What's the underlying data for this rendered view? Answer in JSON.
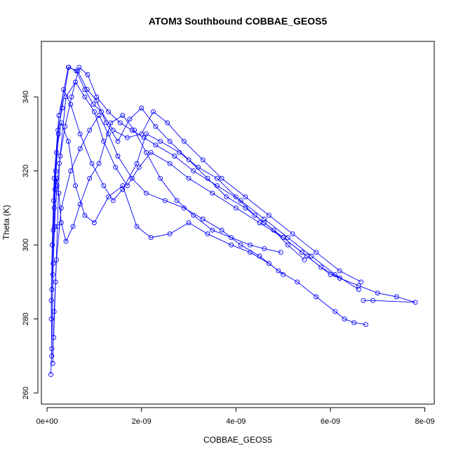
{
  "chart_data": {
    "type": "scatter",
    "title": "ATOM3 Southbound COBBAE_GEOS5",
    "xlabel": "COBBAE_GEOS5",
    "ylabel": "Theta (K)",
    "xlim": [
      -1.2e-10,
      8.2e-09
    ],
    "ylim": [
      257,
      355
    ],
    "x_ticks": [
      0,
      2e-09,
      4e-09,
      6e-09,
      8e-09
    ],
    "x_tick_labels": [
      "0e+00",
      "2e-09",
      "4e-09",
      "6e-09",
      "8e-09"
    ],
    "y_ticks": [
      260,
      280,
      300,
      320,
      340
    ],
    "y_tick_labels": [
      "260",
      "280",
      "300",
      "320",
      "340"
    ],
    "grid": false,
    "legend": "none",
    "marker": "open-circle",
    "connected": true,
    "color": "#0000ff",
    "series": [
      {
        "x": [
          8e-11,
          1e-10,
          9e-11,
          1.1e-10,
          1.5e-10,
          2.5e-10,
          4.5e-10,
          6.5e-10,
          8.5e-10,
          1.05e-09,
          1.25e-09,
          1.5e-09,
          1.75e-09,
          2e-09,
          2.3e-09,
          2.6e-09,
          3e-09,
          3.4e-09,
          3.8e-09,
          4.2e-09,
          4.6e-09,
          5e-09,
          5.4e-09,
          5.8e-09,
          6.2e-09,
          6.6e-09,
          7e-09,
          7.4e-09,
          7.8e-09,
          6.9e-09,
          6.7e-09
        ],
        "y": [
          265,
          272,
          285,
          300,
          318,
          335,
          348,
          347,
          342,
          339,
          333,
          328,
          334,
          337,
          332,
          328,
          323,
          318,
          313,
          310,
          306,
          302,
          298,
          294,
          291,
          289,
          287,
          286,
          284.5,
          285,
          285
        ]
      },
      {
        "x": [
          1.2e-10,
          1.5e-10,
          2e-10,
          3e-10,
          5e-10,
          7e-10,
          9e-10,
          1.1e-09,
          1.3e-09,
          1.5e-09,
          1.8e-09,
          2.1e-09,
          2.5e-09,
          2.9e-09,
          3.3e-09,
          3.7e-09,
          4.1e-09,
          4.5e-09,
          4.9e-09,
          5.3e-09,
          5.7e-09,
          6.1e-09,
          6.3e-09,
          6.5e-09,
          6.75e-09
        ],
        "y": [
          268,
          282,
          296,
          310,
          320,
          326,
          331,
          335,
          330,
          324,
          318,
          314,
          312,
          310,
          307,
          304,
          300,
          297,
          293,
          290,
          286,
          282,
          280,
          279,
          278.5
        ]
      },
      {
        "x": [
          1.4e-10,
          1.8e-10,
          2.2e-10,
          2.6e-10,
          4e-10,
          6e-10,
          8e-10,
          1e-09,
          1.2e-09,
          1.45e-09,
          1.7e-09,
          1.95e-09,
          2.2e-09,
          2.6e-09,
          3e-09,
          3.5e-09,
          4e-09,
          4.5e-09,
          5e-09,
          5.5e-09,
          6e-09,
          6.2e-09
        ],
        "y": [
          275,
          290,
          305,
          322,
          340,
          344,
          340,
          336,
          328,
          321,
          316,
          321,
          325,
          322,
          318,
          314,
          310,
          306,
          302,
          297,
          292,
          291
        ]
      },
      {
        "x": [
          1e-10,
          1.3e-10,
          1.7e-10,
          2.4e-10,
          3.5e-10,
          5e-10,
          7e-10,
          9.5e-10,
          1.2e-09,
          1.4e-09,
          1.6e-09,
          1.9e-09,
          2.1e-09,
          2.4e-09,
          2.8e-09,
          3.2e-09,
          3.6e-09,
          4e-09,
          4.4e-09,
          4.8e-09,
          5.1e-09,
          5.45e-09
        ],
        "y": [
          270,
          295,
          315,
          330,
          342,
          338,
          330,
          322,
          316,
          312,
          315,
          322,
          330,
          328,
          325,
          321,
          318,
          313,
          308,
          304,
          300,
          296
        ]
      },
      {
        "x": [
          9e-11,
          1.1e-10,
          1.4e-10,
          2e-10,
          3e-10,
          4.5e-10,
          6e-10,
          8e-10,
          1e-09,
          1.3e-09,
          1.6e-09,
          1.9e-09,
          2.2e-09,
          2.6e-09,
          3e-09,
          3.4e-09,
          3.9e-09,
          4.3e-09,
          4.7e-09,
          5e-09
        ],
        "y": [
          280,
          300,
          312,
          325,
          333,
          328,
          316,
          308,
          306,
          313,
          316,
          305,
          302,
          303,
          306,
          303,
          300,
          298,
          295,
          292
        ]
      },
      {
        "x": [
          1.5e-10,
          2e-10,
          2.5e-10,
          3e-10,
          4e-10,
          5.5e-10,
          7e-10,
          9e-10,
          1.1e-09,
          1.35e-09,
          1.6e-09,
          1.85e-09,
          2.1e-09,
          2.4e-09,
          2.75e-09,
          3.1e-09,
          3.5e-09,
          3.9e-09,
          4.3e-09,
          4.6e-09,
          4.95e-09
        ],
        "y": [
          310,
          318,
          314,
          306,
          301,
          305,
          311,
          318,
          322,
          333,
          335,
          331,
          325,
          318,
          312,
          308,
          304,
          302,
          300,
          299,
          298
        ]
      },
      {
        "x": [
          1.2e-10,
          1.6e-10,
          2.1e-10,
          2.8e-10,
          3.8e-10,
          5.2e-10,
          6.8e-10,
          8.6e-10,
          1.05e-09,
          1.3e-09,
          1.55e-09,
          1.8e-09,
          2.05e-09,
          2.3e-09,
          2.7e-09,
          3.1e-09,
          3.6e-09,
          4.1e-09,
          4.6e-09,
          5.1e-09,
          5.6e-09,
          6.1e-09,
          6.6e-09
        ],
        "y": [
          292,
          305,
          316,
          324,
          332,
          340,
          348,
          346,
          340,
          336,
          333,
          331,
          329,
          327,
          324,
          320,
          316,
          312,
          307,
          302,
          297,
          292,
          288
        ]
      },
      {
        "x": [
          1e-10,
          1.3e-10,
          1.8e-10,
          2.3e-10,
          3.2e-10,
          4.6e-10,
          6.2e-10,
          8e-10,
          9.8e-10,
          1.15e-09,
          1.4e-09,
          1.7e-09,
          2e-09,
          2.25e-09,
          2.55e-09,
          2.9e-09,
          3.3e-09,
          3.7e-09,
          4.2e-09,
          4.7e-09,
          5.2e-09,
          5.7e-09,
          6.2e-09,
          6.65e-09
        ],
        "y": [
          288,
          304,
          320,
          331,
          337,
          348,
          347,
          342,
          338,
          336,
          331,
          329,
          330,
          336,
          333,
          328,
          323,
          318,
          313,
          308,
          303,
          298,
          293,
          290
        ]
      }
    ]
  }
}
